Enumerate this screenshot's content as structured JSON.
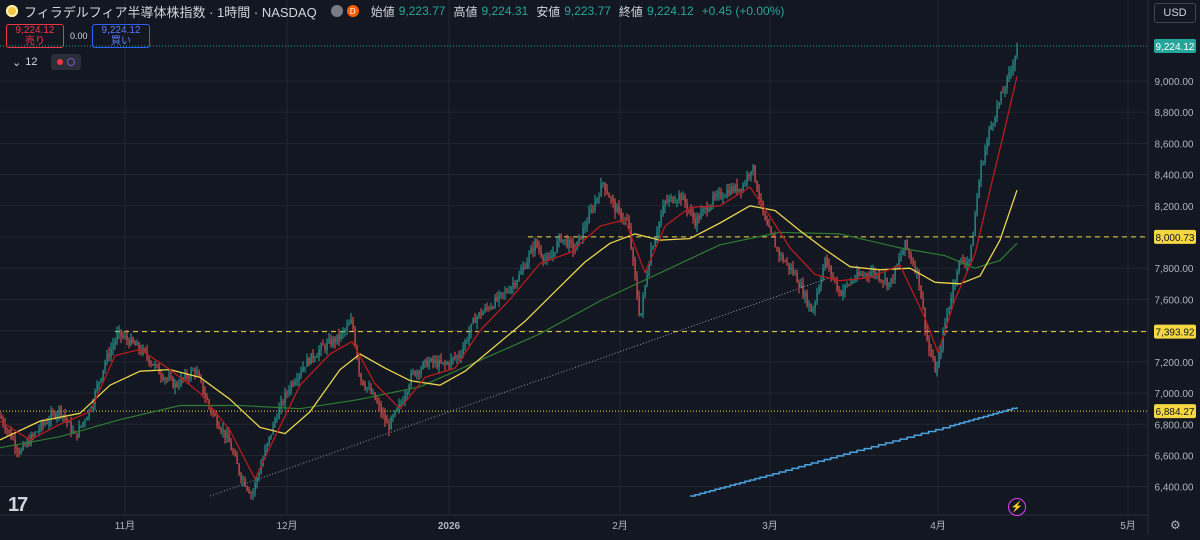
{
  "header": {
    "title": "フィラデルフィア半導体株指数 · 1時間 · NASDAQ",
    "d_badge": "D",
    "open_label": "始値",
    "open": "9,223.77",
    "high_label": "高値",
    "high": "9,224.31",
    "low_label": "安値",
    "low": "9,223.77",
    "close_label": "終値",
    "close": "9,224.12",
    "change": "+0.45 (+0.00%)"
  },
  "trade": {
    "sell_price": "9,224.12",
    "sell_label": "売り",
    "spread": "0.00",
    "buy_price": "9,224.12",
    "buy_label": "買い"
  },
  "indicators": {
    "count": "12"
  },
  "currency": "USD",
  "colors": {
    "bg": "#131722",
    "grid": "#222632",
    "text": "#b2b5be",
    "up": "#26a69a",
    "down": "#ef5350",
    "ma_red": "#b71c1c",
    "ma_yellow": "#e8d44d",
    "ma_green": "#2e7d32",
    "price_line": "#26a69a",
    "hline": "#f5d742",
    "volume_line": "#4aa3df"
  },
  "chart_data": {
    "type": "candlestick",
    "y_ticks": [
      "9,000.00",
      "8,800.00",
      "8,600.00",
      "8,400.00",
      "8,200.00",
      "8,000.00",
      "7,800.00",
      "7,600.00",
      "7,400.00",
      "7,200.00",
      "7,000.00",
      "6,800.00",
      "6,600.00",
      "6,400.00"
    ],
    "x_ticks": [
      "11月",
      "12月",
      "2026",
      "2月",
      "3月",
      "4月",
      "5月"
    ],
    "ylim": [
      6320,
      9320
    ],
    "current_price": {
      "value": 9224.12,
      "label": "9,224.12"
    },
    "horizontal_lines": [
      {
        "value": 8000.73,
        "label": "8,000.73",
        "style": "dashed"
      },
      {
        "value": 7393.92,
        "label": "7,393.92",
        "style": "dashed"
      },
      {
        "value": 6884.27,
        "label": "6,884.27",
        "style": "dotted"
      }
    ],
    "price_path": [
      [
        0,
        6850
      ],
      [
        20,
        6620
      ],
      [
        40,
        6780
      ],
      [
        60,
        6900
      ],
      [
        75,
        6720
      ],
      [
        90,
        6900
      ],
      [
        105,
        7200
      ],
      [
        118,
        7380
      ],
      [
        130,
        7330
      ],
      [
        145,
        7250
      ],
      [
        160,
        7130
      ],
      [
        175,
        7050
      ],
      [
        195,
        7150
      ],
      [
        210,
        6900
      ],
      [
        228,
        6700
      ],
      [
        240,
        6480
      ],
      [
        252,
        6350
      ],
      [
        262,
        6560
      ],
      [
        276,
        6850
      ],
      [
        290,
        7050
      ],
      [
        305,
        7190
      ],
      [
        322,
        7290
      ],
      [
        340,
        7360
      ],
      [
        352,
        7460
      ],
      [
        360,
        7100
      ],
      [
        375,
        6960
      ],
      [
        388,
        6780
      ],
      [
        400,
        6920
      ],
      [
        412,
        7120
      ],
      [
        428,
        7200
      ],
      [
        445,
        7180
      ],
      [
        460,
        7250
      ],
      [
        475,
        7480
      ],
      [
        490,
        7560
      ],
      [
        505,
        7640
      ],
      [
        520,
        7760
      ],
      [
        535,
        7960
      ],
      [
        548,
        7830
      ],
      [
        560,
        8000
      ],
      [
        575,
        7920
      ],
      [
        590,
        8150
      ],
      [
        603,
        8350
      ],
      [
        615,
        8180
      ],
      [
        628,
        8090
      ],
      [
        640,
        7470
      ],
      [
        650,
        7900
      ],
      [
        665,
        8220
      ],
      [
        680,
        8270
      ],
      [
        695,
        8100
      ],
      [
        712,
        8230
      ],
      [
        728,
        8300
      ],
      [
        742,
        8320
      ],
      [
        752,
        8460
      ],
      [
        765,
        8090
      ],
      [
        780,
        7880
      ],
      [
        795,
        7760
      ],
      [
        812,
        7520
      ],
      [
        825,
        7850
      ],
      [
        840,
        7640
      ],
      [
        855,
        7740
      ],
      [
        872,
        7780
      ],
      [
        890,
        7700
      ],
      [
        905,
        7950
      ],
      [
        918,
        7760
      ],
      [
        928,
        7300
      ],
      [
        936,
        7130
      ],
      [
        946,
        7480
      ],
      [
        958,
        7830
      ],
      [
        970,
        7860
      ],
      [
        980,
        8420
      ],
      [
        990,
        8700
      ],
      [
        1000,
        8880
      ],
      [
        1010,
        9050
      ],
      [
        1017,
        9220
      ]
    ],
    "ma_red": [
      [
        0,
        6820
      ],
      [
        30,
        6700
      ],
      [
        60,
        6800
      ],
      [
        90,
        6880
      ],
      [
        115,
        7240
      ],
      [
        140,
        7280
      ],
      [
        170,
        7150
      ],
      [
        200,
        7000
      ],
      [
        230,
        6760
      ],
      [
        255,
        6450
      ],
      [
        275,
        6720
      ],
      [
        300,
        7050
      ],
      [
        330,
        7250
      ],
      [
        352,
        7330
      ],
      [
        375,
        7060
      ],
      [
        400,
        6900
      ],
      [
        425,
        7100
      ],
      [
        455,
        7160
      ],
      [
        480,
        7400
      ],
      [
        510,
        7600
      ],
      [
        540,
        7830
      ],
      [
        570,
        7900
      ],
      [
        600,
        8070
      ],
      [
        625,
        8110
      ],
      [
        645,
        7770
      ],
      [
        665,
        8070
      ],
      [
        690,
        8190
      ],
      [
        720,
        8200
      ],
      [
        750,
        8320
      ],
      [
        765,
        8180
      ],
      [
        790,
        7930
      ],
      [
        815,
        7760
      ],
      [
        840,
        7720
      ],
      [
        870,
        7740
      ],
      [
        900,
        7820
      ],
      [
        925,
        7480
      ],
      [
        938,
        7260
      ],
      [
        955,
        7600
      ],
      [
        975,
        7890
      ],
      [
        990,
        8300
      ],
      [
        1005,
        8700
      ],
      [
        1017,
        9030
      ]
    ],
    "ma_yellow": [
      [
        0,
        6700
      ],
      [
        40,
        6820
      ],
      [
        80,
        6870
      ],
      [
        110,
        7050
      ],
      [
        140,
        7140
      ],
      [
        170,
        7150
      ],
      [
        200,
        7100
      ],
      [
        230,
        6960
      ],
      [
        260,
        6780
      ],
      [
        285,
        6740
      ],
      [
        310,
        6880
      ],
      [
        340,
        7150
      ],
      [
        360,
        7250
      ],
      [
        385,
        7160
      ],
      [
        410,
        7080
      ],
      [
        440,
        7050
      ],
      [
        465,
        7140
      ],
      [
        495,
        7300
      ],
      [
        525,
        7460
      ],
      [
        555,
        7650
      ],
      [
        585,
        7840
      ],
      [
        610,
        7960
      ],
      [
        635,
        8020
      ],
      [
        660,
        7980
      ],
      [
        690,
        7990
      ],
      [
        720,
        8090
      ],
      [
        750,
        8200
      ],
      [
        775,
        8170
      ],
      [
        800,
        8040
      ],
      [
        825,
        7920
      ],
      [
        850,
        7810
      ],
      [
        880,
        7790
      ],
      [
        910,
        7800
      ],
      [
        935,
        7710
      ],
      [
        960,
        7700
      ],
      [
        980,
        7750
      ],
      [
        1000,
        7980
      ],
      [
        1017,
        8300
      ]
    ],
    "ma_green": [
      [
        0,
        6650
      ],
      [
        60,
        6720
      ],
      [
        120,
        6830
      ],
      [
        180,
        6920
      ],
      [
        240,
        6920
      ],
      [
        300,
        6900
      ],
      [
        360,
        6960
      ],
      [
        420,
        7040
      ],
      [
        480,
        7210
      ],
      [
        540,
        7380
      ],
      [
        600,
        7590
      ],
      [
        660,
        7770
      ],
      [
        720,
        7950
      ],
      [
        780,
        8030
      ],
      [
        840,
        8020
      ],
      [
        900,
        7930
      ],
      [
        945,
        7880
      ],
      [
        975,
        7800
      ],
      [
        1000,
        7850
      ],
      [
        1017,
        7960
      ]
    ],
    "trendline": [
      [
        210,
        6340
      ],
      [
        830,
        7740
      ]
    ],
    "volume_steps": [
      [
        690,
        6340
      ],
      [
        760,
        6460
      ],
      [
        850,
        6620
      ],
      [
        950,
        6790
      ],
      [
        1017,
        6910
      ]
    ]
  }
}
